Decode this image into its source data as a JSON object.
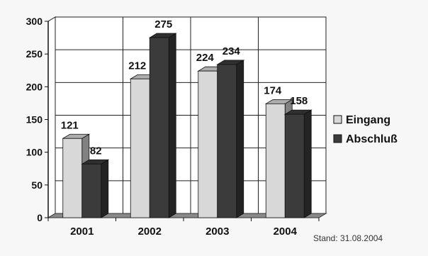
{
  "chart_data": {
    "type": "bar",
    "categories": [
      "2001",
      "2002",
      "2003",
      "2004"
    ],
    "series": [
      {
        "name": "Eingang",
        "values": [
          121,
          212,
          224,
          174
        ],
        "color": "#d8d8d8"
      },
      {
        "name": "Abschluß",
        "values": [
          82,
          275,
          234,
          158
        ],
        "color": "#3b3b3b"
      }
    ],
    "ylim": [
      0,
      300
    ],
    "yticks": [
      0,
      50,
      100,
      150,
      200,
      250,
      300
    ],
    "grid": true,
    "legend_position": "right",
    "three_d": true
  },
  "footnote": "Stand: 31.08.2004"
}
